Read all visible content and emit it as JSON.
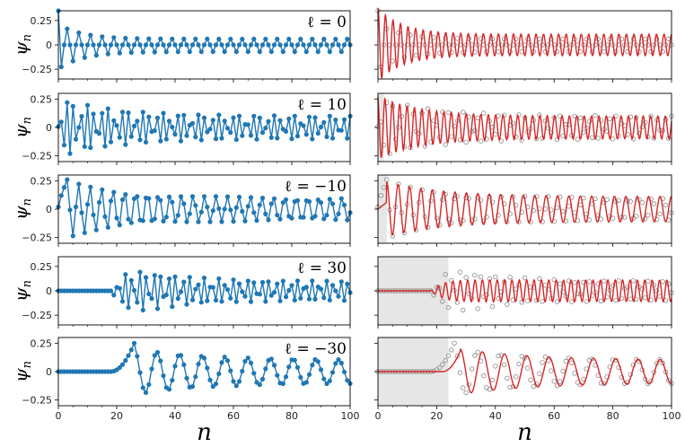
{
  "chart_data": [
    {
      "type": "line",
      "panel": "left",
      "annotation": "ℓ = 0",
      "ylabel": "ψ_n",
      "xlabel": "",
      "xlim": [
        0,
        100
      ],
      "ylim": [
        -0.35,
        0.35
      ],
      "yticks": [
        "0.25",
        "0",
        "−0.25"
      ],
      "yticks_v": [
        0.25,
        0,
        -0.25
      ],
      "xticks": [],
      "series": [
        {
          "mode": "cosine",
          "n0": 0,
          "amp0": 0.35,
          "amp_inf": 0.1,
          "decay": 0.12,
          "omega": 3.14159,
          "phase": 0,
          "color": "#1f77b4"
        }
      ]
    },
    {
      "type": "line",
      "panel": "right",
      "annotation": "",
      "ylabel": "",
      "xlabel": "",
      "xlim": [
        0,
        100
      ],
      "ylim": [
        -0.35,
        0.35
      ],
      "yticks": [],
      "xticks": [],
      "shade": [
        0,
        0
      ],
      "series": [
        {
          "mode": "points",
          "n0": 0,
          "amp0": 0.35,
          "amp_inf": 0.1,
          "decay": 0.12,
          "omega": 3.14159,
          "phase": 0,
          "color": "#888888"
        },
        {
          "mode": "curve",
          "n0": 0,
          "amp0": 0.38,
          "amp_inf": 0.11,
          "decay": 0.12,
          "omega": 2.45,
          "phase": 0,
          "color": "#d62728"
        }
      ]
    },
    {
      "type": "line",
      "panel": "left",
      "annotation": "ℓ = 10",
      "ylabel": "ψ_n",
      "xlabel": "",
      "xlim": [
        0,
        100
      ],
      "ylim": [
        -0.3,
        0.3
      ],
      "yticks": [
        "0.25",
        "0",
        "−0.25"
      ],
      "yticks_v": [
        0.25,
        0,
        -0.25
      ],
      "xticks": [],
      "series": [
        {
          "mode": "sine",
          "n0": 0,
          "amp0": 0.26,
          "amp_inf": 0.1,
          "decay": 0.05,
          "omega": 2.65,
          "phase": 0.3,
          "color": "#1f77b4"
        }
      ]
    },
    {
      "type": "line",
      "panel": "right",
      "annotation": "",
      "ylabel": "",
      "xlabel": "",
      "xlim": [
        0,
        100
      ],
      "ylim": [
        -0.3,
        0.3
      ],
      "yticks": [],
      "xticks": [],
      "shade": [
        0,
        2
      ],
      "series": [
        {
          "mode": "points",
          "n0": 0,
          "amp0": 0.26,
          "amp_inf": 0.1,
          "decay": 0.05,
          "omega": 2.65,
          "phase": 0.3,
          "color": "#888888"
        },
        {
          "mode": "curve",
          "n0": 0,
          "amp0": 0.28,
          "amp_inf": 0.1,
          "decay": 0.07,
          "omega": 2.5,
          "phase": 0.3,
          "color": "#d62728"
        }
      ]
    },
    {
      "type": "line",
      "panel": "left",
      "annotation": "ℓ = −10",
      "ylabel": "ψ_n",
      "xlabel": "",
      "xlim": [
        0,
        100
      ],
      "ylim": [
        -0.3,
        0.3
      ],
      "yticks": [
        "0.25",
        "0",
        "−0.25"
      ],
      "yticks_v": [
        0.25,
        0,
        -0.25
      ],
      "xticks": [],
      "series": [
        {
          "mode": "wave",
          "n0": 3,
          "amp0": 0.25,
          "amp_inf": 0.1,
          "decay": 0.05,
          "omega": 1.6,
          "phase": 0,
          "color": "#1f77b4"
        }
      ]
    },
    {
      "type": "line",
      "panel": "right",
      "annotation": "",
      "ylabel": "",
      "xlabel": "",
      "xlim": [
        0,
        100
      ],
      "ylim": [
        -0.3,
        0.3
      ],
      "yticks": [],
      "xticks": [],
      "shade": [
        0,
        3
      ],
      "series": [
        {
          "mode": "points",
          "n0": 3,
          "amp0": 0.25,
          "amp_inf": 0.1,
          "decay": 0.05,
          "omega": 1.6,
          "phase": 0,
          "color": "#888888"
        },
        {
          "mode": "curve",
          "n0": 3,
          "amp0": 0.24,
          "amp_inf": 0.11,
          "decay": 0.05,
          "omega": 1.62,
          "phase": 0,
          "color": "#d62728"
        }
      ]
    },
    {
      "type": "line",
      "panel": "left",
      "annotation": "ℓ = 30",
      "ylabel": "ψ_n",
      "xlabel": "",
      "xlim": [
        0,
        100
      ],
      "ylim": [
        -0.35,
        0.35
      ],
      "yticks": [
        "0.25",
        "0",
        "−0.25"
      ],
      "yticks_v": [
        0.25,
        0,
        -0.25
      ],
      "xticks": [],
      "series": [
        {
          "mode": "onset",
          "n0": 18,
          "amp0": 0.24,
          "amp_inf": 0.1,
          "decay": 0.06,
          "omega": 2.55,
          "phase": 0,
          "rise": 4,
          "color": "#1f77b4"
        }
      ]
    },
    {
      "type": "line",
      "panel": "right",
      "annotation": "",
      "ylabel": "",
      "xlabel": "",
      "xlim": [
        0,
        100
      ],
      "ylim": [
        -0.35,
        0.35
      ],
      "yticks": [],
      "xticks": [],
      "shade": [
        0,
        24
      ],
      "series": [
        {
          "mode": "points",
          "n0": 18,
          "amp0": 0.24,
          "amp_inf": 0.1,
          "decay": 0.06,
          "omega": 2.55,
          "phase": 0,
          "rise": 4,
          "color": "#888888"
        },
        {
          "mode": "curve",
          "n0": 18,
          "amp0": 0.12,
          "amp_inf": 0.11,
          "decay": 0.06,
          "omega": 2.5,
          "phase": 0,
          "rise": 4,
          "color": "#d62728"
        }
      ]
    },
    {
      "type": "line",
      "panel": "left",
      "annotation": "ℓ = −30",
      "ylabel": "ψ_n",
      "xlabel": "n",
      "xlim": [
        0,
        100
      ],
      "ylim": [
        -0.3,
        0.3
      ],
      "yticks": [
        "0.25",
        "0",
        "−0.25"
      ],
      "yticks_v": [
        0.25,
        0,
        -0.25
      ],
      "xticks": [
        "0",
        "20",
        "40",
        "60",
        "80",
        "100"
      ],
      "series": [
        {
          "mode": "bump",
          "n0": 18,
          "amp0": 0.25,
          "amp_inf": 0.1,
          "decay": 0.04,
          "omega": 0.85,
          "phase": 0,
          "peak": 26,
          "color": "#1f77b4"
        }
      ]
    },
    {
      "type": "line",
      "panel": "right",
      "annotation": "",
      "ylabel": "",
      "xlabel": "n",
      "xlim": [
        0,
        100
      ],
      "ylim": [
        -0.3,
        0.3
      ],
      "yticks": [],
      "xticks": [
        "0",
        "20",
        "40",
        "60",
        "80",
        "100"
      ],
      "shade": [
        0,
        24
      ],
      "series": [
        {
          "mode": "points",
          "n0": 18,
          "amp0": 0.25,
          "amp_inf": 0.1,
          "decay": 0.04,
          "omega": 0.85,
          "phase": 0,
          "peak": 26,
          "color": "#888888"
        },
        {
          "mode": "curve-bump",
          "n0": 22,
          "amp0": 0.18,
          "amp_inf": 0.1,
          "decay": 0.04,
          "omega": 0.83,
          "phase": 0,
          "peak": 28,
          "color": "#d62728"
        }
      ]
    }
  ]
}
